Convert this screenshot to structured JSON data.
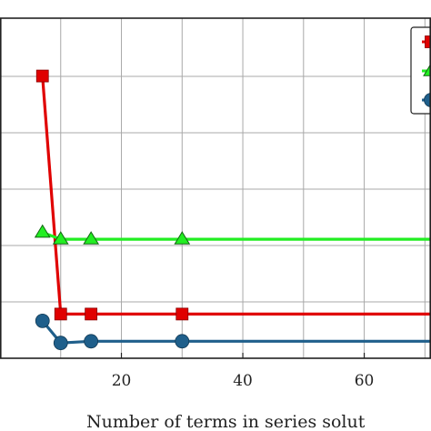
{
  "chart_data": {
    "type": "line",
    "title": "",
    "xlabel": "Number of terms in series solut",
    "ylabel": "",
    "x_ticks": [
      20,
      40,
      60
    ],
    "xlim": [
      0,
      71
    ],
    "ylim": [
      0,
      1
    ],
    "grid": true,
    "legend": "top-right",
    "series": [
      {
        "color": "#e00000",
        "marker": "square",
        "x": [
          7,
          10,
          15,
          30,
          71
        ],
        "y": [
          0.83,
          0.13,
          0.13,
          0.13,
          0.13
        ]
      },
      {
        "color": "#22ee22",
        "marker": "triangle",
        "x": [
          7,
          10,
          15,
          30,
          71
        ],
        "y": [
          0.37,
          0.35,
          0.35,
          0.35,
          0.35
        ]
      },
      {
        "color": "#1f5f8b",
        "marker": "circle",
        "x": [
          7,
          10,
          15,
          30,
          71
        ],
        "y": [
          0.11,
          0.045,
          0.05,
          0.05,
          0.05
        ]
      }
    ]
  }
}
